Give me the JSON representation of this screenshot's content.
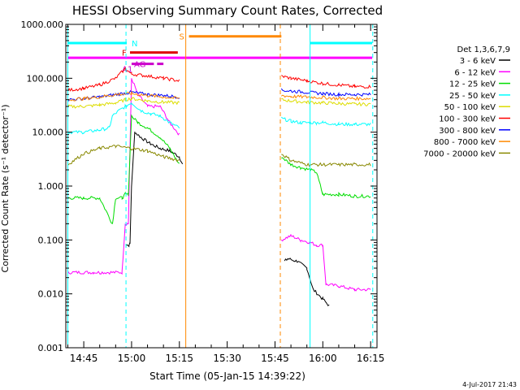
{
  "chart_data": {
    "type": "line",
    "title": "HESSI Observing Summary Count Rates, Corrected",
    "xlabel": "Start Time (05-Jan-15 14:39:22)",
    "ylabel": "Corrected Count Rate (s⁻¹ detector⁻¹)",
    "yscale": "log",
    "ylim": [
      0.001,
      1000
    ],
    "xlim": [
      "14:39:22",
      "16:17:00"
    ],
    "x_ticks": [
      "14:45",
      "15:00",
      "15:15",
      "15:30",
      "15:45",
      "16:00",
      "16:15"
    ],
    "y_ticks": [
      "0.001",
      "0.010",
      "0.100",
      "1.000",
      "10.000",
      "100.000",
      "1000.000"
    ],
    "legend_title": "Det 1,3,6,7,9",
    "legend_position": "right",
    "timestamp": "4-Jul-2017 21:43",
    "series": [
      {
        "name": "3 - 6 keV",
        "color": "#000000",
        "segments": [
          [
            [
              "14:58:20",
              0.08
            ],
            [
              "14:59:10",
              0.08
            ],
            [
              "14:59:30",
              0.09
            ],
            [
              "15:00:00",
              1.0
            ],
            [
              "15:01:00",
              10.0
            ],
            [
              "15:03:00",
              8.0
            ],
            [
              "15:06:00",
              6.0
            ],
            [
              "15:09:00",
              5.0
            ],
            [
              "15:12:00",
              4.5
            ],
            [
              "15:15:00",
              3.5
            ],
            [
              "15:16:00",
              2.5
            ]
          ],
          [
            [
              "15:48:00",
              0.04
            ],
            [
              "15:49:00",
              0.045
            ],
            [
              "15:52:00",
              0.04
            ],
            [
              "15:55:00",
              0.03
            ],
            [
              "15:57:00",
              0.012
            ],
            [
              "16:00:00",
              0.008
            ],
            [
              "16:02:00",
              0.006
            ]
          ]
        ]
      },
      {
        "name": "6 - 12 keV",
        "color": "#ff00ff",
        "segments": [
          [
            [
              "14:40:00",
              0.025
            ],
            [
              "14:48:00",
              0.025
            ],
            [
              "14:50:00",
              0.025
            ],
            [
              "14:57:00",
              0.025
            ],
            [
              "14:58:00",
              0.2
            ],
            [
              "14:59:00",
              0.2
            ],
            [
              "15:00:00",
              100
            ],
            [
              "15:02:00",
              50
            ],
            [
              "15:05:00",
              30
            ],
            [
              "15:09:00",
              30
            ],
            [
              "15:12:00",
              15
            ],
            [
              "15:15:00",
              9
            ]
          ],
          [
            [
              "15:47:00",
              0.1
            ],
            [
              "15:50:00",
              0.12
            ],
            [
              "15:53:00",
              0.1
            ],
            [
              "15:56:00",
              0.09
            ],
            [
              "15:58:00",
              0.08
            ],
            [
              "16:00:00",
              0.08
            ],
            [
              "16:01:00",
              0.015
            ],
            [
              "16:05:00",
              0.014
            ],
            [
              "16:10:00",
              0.012
            ],
            [
              "16:15:00",
              0.012
            ]
          ]
        ]
      },
      {
        "name": "12 - 25 keV",
        "color": "#00dd00",
        "segments": [
          [
            [
              "14:40:00",
              0.6
            ],
            [
              "14:45:00",
              0.6
            ],
            [
              "14:50:00",
              0.6
            ],
            [
              "14:54:00",
              0.2
            ],
            [
              "14:55:00",
              0.6
            ],
            [
              "14:57:00",
              0.6
            ],
            [
              "14:58:00",
              0.7
            ],
            [
              "14:59:00",
              0.7
            ],
            [
              "15:00:00",
              20
            ],
            [
              "15:02:00",
              15
            ],
            [
              "15:05:00",
              12
            ],
            [
              "15:09:00",
              8
            ],
            [
              "15:12:00",
              5
            ],
            [
              "15:15:00",
              2.5
            ]
          ],
          [
            [
              "15:47:00",
              3.5
            ],
            [
              "15:50:00",
              2.5
            ],
            [
              "15:53:00",
              2.2
            ],
            [
              "15:56:00",
              2.0
            ],
            [
              "15:58:00",
              1.8
            ],
            [
              "16:00:00",
              0.7
            ],
            [
              "16:05:00",
              0.7
            ],
            [
              "16:10:00",
              0.65
            ],
            [
              "16:15:00",
              0.65
            ]
          ]
        ]
      },
      {
        "name": "25 - 50 keV",
        "color": "#00ffff",
        "segments": [
          [
            [
              "14:40:00",
              10
            ],
            [
              "14:45:00",
              10
            ],
            [
              "14:50:00",
              11
            ],
            [
              "14:53:00",
              12
            ],
            [
              "14:54:00",
              20
            ],
            [
              "14:56:00",
              25
            ],
            [
              "14:58:00",
              30
            ],
            [
              "15:00:00",
              35
            ],
            [
              "15:03:00",
              25
            ],
            [
              "15:06:00",
              22
            ],
            [
              "15:09:00",
              20
            ],
            [
              "15:12:00",
              15
            ],
            [
              "15:15:00",
              12
            ]
          ],
          [
            [
              "15:47:00",
              18
            ],
            [
              "15:50:00",
              16
            ],
            [
              "15:53:00",
              15
            ],
            [
              "15:56:00",
              15
            ],
            [
              "15:58:00",
              15
            ],
            [
              "16:00:00",
              15
            ],
            [
              "16:05:00",
              14
            ],
            [
              "16:10:00",
              14
            ],
            [
              "16:15:00",
              14
            ]
          ]
        ]
      },
      {
        "name": "50 - 100 keV",
        "color": "#dddd00",
        "segments": [
          [
            [
              "14:40:00",
              30
            ],
            [
              "14:45:00",
              30
            ],
            [
              "14:50:00",
              32
            ],
            [
              "14:55:00",
              35
            ],
            [
              "14:58:00",
              40
            ],
            [
              "15:00:00",
              42
            ],
            [
              "15:05:00",
              38
            ],
            [
              "15:10:00",
              36
            ],
            [
              "15:15:00",
              35
            ]
          ],
          [
            [
              "15:47:00",
              40
            ],
            [
              "15:50:00",
              38
            ],
            [
              "15:55:00",
              36
            ],
            [
              "16:00:00",
              35
            ],
            [
              "16:05:00",
              34
            ],
            [
              "16:10:00",
              33
            ],
            [
              "16:15:00",
              33
            ]
          ]
        ]
      },
      {
        "name": "100 - 300 keV",
        "color": "#ff0000",
        "segments": [
          [
            [
              "14:40:00",
              60
            ],
            [
              "14:45:00",
              65
            ],
            [
              "14:50:00",
              75
            ],
            [
              "14:55:00",
              100
            ],
            [
              "14:58:00",
              150
            ],
            [
              "15:00:00",
              120
            ],
            [
              "15:05:00",
              110
            ],
            [
              "15:10:00",
              100
            ],
            [
              "15:15:00",
              90
            ]
          ],
          [
            [
              "15:47:00",
              110
            ],
            [
              "15:50:00",
              100
            ],
            [
              "15:55:00",
              90
            ],
            [
              "16:00:00",
              80
            ],
            [
              "16:05:00",
              75
            ],
            [
              "16:10:00",
              70
            ],
            [
              "16:15:00",
              70
            ]
          ]
        ]
      },
      {
        "name": "300 - 800 keV",
        "color": "#0000ff",
        "segments": [
          [
            [
              "14:40:00",
              40
            ],
            [
              "14:45:00",
              42
            ],
            [
              "14:50:00",
              45
            ],
            [
              "14:55:00",
              50
            ],
            [
              "15:00:00",
              55
            ],
            [
              "15:05:00",
              50
            ],
            [
              "15:10:00",
              48
            ],
            [
              "15:15:00",
              45
            ]
          ],
          [
            [
              "15:47:00",
              60
            ],
            [
              "15:50:00",
              58
            ],
            [
              "15:55:00",
              55
            ],
            [
              "16:00:00",
              52
            ],
            [
              "16:05:00",
              50
            ],
            [
              "16:10:00",
              50
            ],
            [
              "16:15:00",
              50
            ]
          ]
        ]
      },
      {
        "name": "800 - 7000 keV",
        "color": "#ff8800",
        "segments": [
          [
            [
              "14:40:00",
              40
            ],
            [
              "14:45:00",
              42
            ],
            [
              "14:50:00",
              45
            ],
            [
              "14:55:00",
              50
            ],
            [
              "15:00:00",
              52
            ],
            [
              "15:05:00",
              48
            ],
            [
              "15:10:00",
              45
            ],
            [
              "15:15:00",
              42
            ]
          ],
          [
            [
              "15:47:00",
              48
            ],
            [
              "15:50:00",
              46
            ],
            [
              "15:55:00",
              45
            ],
            [
              "16:00:00",
              44
            ],
            [
              "16:05:00",
              42
            ],
            [
              "16:10:00",
              42
            ],
            [
              "16:15:00",
              42
            ]
          ]
        ]
      },
      {
        "name": "7000 - 20000 keV",
        "color": "#888800",
        "segments": [
          [
            [
              "14:40:00",
              2.5
            ],
            [
              "14:45:00",
              4
            ],
            [
              "14:50:00",
              5
            ],
            [
              "14:55:00",
              5.5
            ],
            [
              "15:00:00",
              5
            ],
            [
              "15:05:00",
              4.5
            ],
            [
              "15:10:00",
              3.5
            ],
            [
              "15:15:00",
              3
            ]
          ],
          [
            [
              "15:47:00",
              4
            ],
            [
              "15:50:00",
              3
            ],
            [
              "15:55:00",
              2.5
            ],
            [
              "16:00:00",
              2.5
            ],
            [
              "16:05:00",
              2.5
            ],
            [
              "16:10:00",
              2.5
            ],
            [
              "16:15:00",
              2.5
            ]
          ]
        ]
      }
    ],
    "flag_bars": [
      {
        "label": "N",
        "color": "#00ffff",
        "y": 450,
        "segments": [
          [
            "14:40:00",
            "14:58:30"
          ],
          [
            "15:56:00",
            "16:15:30"
          ]
        ]
      },
      {
        "label": "S",
        "color": "#ff8800",
        "y": 600,
        "segments": [
          [
            "15:18:00",
            "15:47:00"
          ]
        ]
      },
      {
        "label": "F",
        "color": "#dd0000",
        "y": 300,
        "segments": [
          [
            "14:59:30",
            "15:14:30"
          ]
        ]
      },
      {
        "label": "",
        "color": "#ff00ff",
        "y": 240,
        "segments": [
          [
            "14:40:00",
            "16:15:30"
          ]
        ]
      },
      {
        "label": "AG",
        "color": "#cc00cc",
        "y": 185,
        "segments": [
          [
            "15:00:00",
            "15:07:00"
          ],
          [
            "15:08:00",
            "15:10:00"
          ]
        ]
      },
      {
        "label": "A1",
        "color": "#cc00cc",
        "y": 150,
        "segments": []
      }
    ],
    "vlines": [
      {
        "time": "14:58:15",
        "color": "#00ffff",
        "style": "dashed"
      },
      {
        "time": "15:17:00",
        "color": "#ff8800",
        "style": "solid"
      },
      {
        "time": "15:46:40",
        "color": "#ff8800",
        "style": "dashed"
      },
      {
        "time": "15:56:00",
        "color": "#00ffff",
        "style": "solid"
      },
      {
        "time": "16:15:40",
        "color": "#00ffff",
        "style": "dashed"
      },
      {
        "time": "14:40:00",
        "color": "#00ffff",
        "style": "solid"
      }
    ]
  }
}
